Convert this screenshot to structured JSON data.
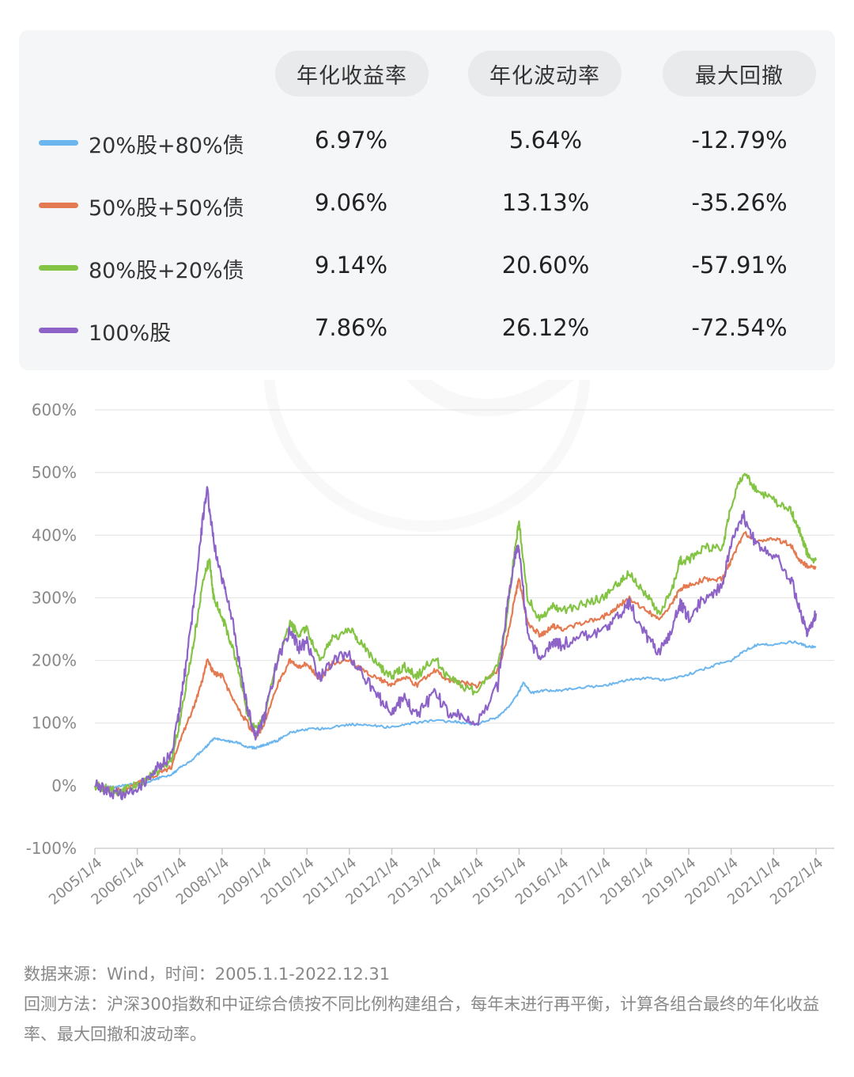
{
  "table": {
    "columns": [
      "年化收益率",
      "年化波动率",
      "最大回撤"
    ],
    "rows": [
      {
        "label": "20%股+80%债",
        "color": "#6bb6ee",
        "values": [
          "6.97%",
          "5.64%",
          "-12.79%"
        ]
      },
      {
        "label": "50%股+50%债",
        "color": "#e37a52",
        "values": [
          "9.06%",
          "13.13%",
          "-35.26%"
        ]
      },
      {
        "label": "80%股+20%债",
        "color": "#84c445",
        "values": [
          "9.14%",
          "20.60%",
          "-57.91%"
        ]
      },
      {
        "label": "100%股",
        "color": "#8e63c8",
        "values": [
          "7.86%",
          "26.12%",
          "-72.54%"
        ]
      }
    ]
  },
  "chart_data": {
    "type": "line",
    "ylim": [
      -100,
      600
    ],
    "y_ticks": [
      "600%",
      "500%",
      "400%",
      "300%",
      "200%",
      "100%",
      "0%",
      "-100%"
    ],
    "y_tick_values": [
      600,
      500,
      400,
      300,
      200,
      100,
      0,
      -100
    ],
    "x_ticks": [
      "2005/1/4",
      "2006/1/4",
      "2007/1/4",
      "2008/1/4",
      "2009/1/4",
      "2010/1/4",
      "2011/1/4",
      "2012/1/4",
      "2013/1/4",
      "2014/1/4",
      "2015/1/4",
      "2016/1/4",
      "2017/1/4",
      "2018/1/4",
      "2019/1/4",
      "2020/1/4",
      "2021/1/4",
      "2022/1/4"
    ],
    "x_range": [
      2005.0,
      2022.0
    ],
    "grid": true,
    "series": [
      {
        "name": "20%股+80%债",
        "color": "#6bb6ee",
        "points": [
          [
            2005.0,
            0
          ],
          [
            2005.4,
            -3
          ],
          [
            2005.8,
            2
          ],
          [
            2006.2,
            5
          ],
          [
            2006.5,
            12
          ],
          [
            2006.8,
            18
          ],
          [
            2007.0,
            28
          ],
          [
            2007.3,
            42
          ],
          [
            2007.6,
            60
          ],
          [
            2007.8,
            75
          ],
          [
            2008.0,
            72
          ],
          [
            2008.3,
            70
          ],
          [
            2008.6,
            62
          ],
          [
            2008.8,
            60
          ],
          [
            2009.0,
            65
          ],
          [
            2009.3,
            72
          ],
          [
            2009.6,
            85
          ],
          [
            2010.0,
            90
          ],
          [
            2010.5,
            92
          ],
          [
            2011.0,
            98
          ],
          [
            2011.5,
            96
          ],
          [
            2012.0,
            93
          ],
          [
            2012.5,
            100
          ],
          [
            2013.0,
            104
          ],
          [
            2013.5,
            102
          ],
          [
            2014.0,
            98
          ],
          [
            2014.5,
            110
          ],
          [
            2014.8,
            130
          ],
          [
            2015.0,
            150
          ],
          [
            2015.1,
            165
          ],
          [
            2015.3,
            148
          ],
          [
            2015.6,
            152
          ],
          [
            2016.0,
            152
          ],
          [
            2016.5,
            157
          ],
          [
            2017.0,
            160
          ],
          [
            2017.5,
            168
          ],
          [
            2018.0,
            172
          ],
          [
            2018.5,
            168
          ],
          [
            2019.0,
            178
          ],
          [
            2019.5,
            190
          ],
          [
            2020.0,
            200
          ],
          [
            2020.3,
            215
          ],
          [
            2020.6,
            225
          ],
          [
            2021.0,
            226
          ],
          [
            2021.5,
            230
          ],
          [
            2021.8,
            222
          ],
          [
            2022.0,
            222
          ]
        ]
      },
      {
        "name": "50%股+50%债",
        "color": "#e37a52",
        "points": [
          [
            2005.0,
            0
          ],
          [
            2005.3,
            -3
          ],
          [
            2005.6,
            -8
          ],
          [
            2005.9,
            0
          ],
          [
            2006.2,
            10
          ],
          [
            2006.5,
            20
          ],
          [
            2006.8,
            30
          ],
          [
            2007.0,
            70
          ],
          [
            2007.3,
            120
          ],
          [
            2007.5,
            160
          ],
          [
            2007.65,
            200
          ],
          [
            2007.8,
            180
          ],
          [
            2008.0,
            175
          ],
          [
            2008.3,
            130
          ],
          [
            2008.6,
            100
          ],
          [
            2008.8,
            75
          ],
          [
            2009.0,
            100
          ],
          [
            2009.3,
            160
          ],
          [
            2009.6,
            200
          ],
          [
            2009.8,
            190
          ],
          [
            2010.0,
            195
          ],
          [
            2010.3,
            170
          ],
          [
            2010.6,
            195
          ],
          [
            2011.0,
            200
          ],
          [
            2011.3,
            185
          ],
          [
            2011.7,
            170
          ],
          [
            2012.0,
            160
          ],
          [
            2012.3,
            175
          ],
          [
            2012.6,
            160
          ],
          [
            2013.0,
            185
          ],
          [
            2013.3,
            170
          ],
          [
            2013.6,
            165
          ],
          [
            2014.0,
            160
          ],
          [
            2014.5,
            185
          ],
          [
            2014.7,
            230
          ],
          [
            2014.9,
            300
          ],
          [
            2015.0,
            330
          ],
          [
            2015.2,
            260
          ],
          [
            2015.5,
            240
          ],
          [
            2015.8,
            255
          ],
          [
            2016.0,
            250
          ],
          [
            2016.5,
            260
          ],
          [
            2017.0,
            270
          ],
          [
            2017.3,
            285
          ],
          [
            2017.6,
            300
          ],
          [
            2018.0,
            280
          ],
          [
            2018.3,
            265
          ],
          [
            2018.6,
            290
          ],
          [
            2018.8,
            315
          ],
          [
            2019.0,
            320
          ],
          [
            2019.4,
            330
          ],
          [
            2019.8,
            330
          ],
          [
            2020.0,
            360
          ],
          [
            2020.3,
            405
          ],
          [
            2020.6,
            390
          ],
          [
            2021.0,
            395
          ],
          [
            2021.4,
            385
          ],
          [
            2021.6,
            360
          ],
          [
            2021.8,
            350
          ],
          [
            2022.0,
            350
          ]
        ]
      },
      {
        "name": "80%股+20%债",
        "color": "#84c445",
        "points": [
          [
            2005.0,
            0
          ],
          [
            2005.3,
            -5
          ],
          [
            2005.6,
            -10
          ],
          [
            2005.9,
            0
          ],
          [
            2006.2,
            10
          ],
          [
            2006.5,
            25
          ],
          [
            2006.8,
            40
          ],
          [
            2007.0,
            100
          ],
          [
            2007.2,
            180
          ],
          [
            2007.4,
            260
          ],
          [
            2007.55,
            330
          ],
          [
            2007.7,
            360
          ],
          [
            2007.8,
            300
          ],
          [
            2008.0,
            270
          ],
          [
            2008.2,
            230
          ],
          [
            2008.4,
            180
          ],
          [
            2008.6,
            110
          ],
          [
            2008.8,
            90
          ],
          [
            2009.0,
            110
          ],
          [
            2009.3,
            200
          ],
          [
            2009.6,
            260
          ],
          [
            2009.8,
            240
          ],
          [
            2010.0,
            250
          ],
          [
            2010.3,
            200
          ],
          [
            2010.6,
            235
          ],
          [
            2011.0,
            250
          ],
          [
            2011.3,
            225
          ],
          [
            2011.7,
            190
          ],
          [
            2012.0,
            175
          ],
          [
            2012.3,
            190
          ],
          [
            2012.6,
            175
          ],
          [
            2013.0,
            205
          ],
          [
            2013.3,
            175
          ],
          [
            2013.6,
            160
          ],
          [
            2014.0,
            150
          ],
          [
            2014.5,
            190
          ],
          [
            2014.7,
            260
          ],
          [
            2014.9,
            380
          ],
          [
            2015.0,
            420
          ],
          [
            2015.2,
            300
          ],
          [
            2015.5,
            265
          ],
          [
            2015.8,
            285
          ],
          [
            2016.0,
            280
          ],
          [
            2016.5,
            290
          ],
          [
            2017.0,
            300
          ],
          [
            2017.3,
            320
          ],
          [
            2017.6,
            340
          ],
          [
            2018.0,
            305
          ],
          [
            2018.3,
            275
          ],
          [
            2018.6,
            310
          ],
          [
            2018.8,
            360
          ],
          [
            2019.0,
            360
          ],
          [
            2019.4,
            380
          ],
          [
            2019.8,
            380
          ],
          [
            2020.0,
            450
          ],
          [
            2020.3,
            500
          ],
          [
            2020.6,
            470
          ],
          [
            2021.0,
            455
          ],
          [
            2021.4,
            440
          ],
          [
            2021.6,
            410
          ],
          [
            2021.8,
            370
          ],
          [
            2022.0,
            360
          ]
        ]
      },
      {
        "name": "100%股",
        "color": "#8e63c8",
        "points": [
          [
            2005.0,
            0
          ],
          [
            2005.3,
            -8
          ],
          [
            2005.6,
            -15
          ],
          [
            2005.9,
            -5
          ],
          [
            2006.2,
            5
          ],
          [
            2006.5,
            30
          ],
          [
            2006.8,
            50
          ],
          [
            2007.0,
            120
          ],
          [
            2007.2,
            220
          ],
          [
            2007.4,
            330
          ],
          [
            2007.55,
            430
          ],
          [
            2007.65,
            470
          ],
          [
            2007.8,
            390
          ],
          [
            2008.0,
            330
          ],
          [
            2008.2,
            280
          ],
          [
            2008.4,
            200
          ],
          [
            2008.6,
            120
          ],
          [
            2008.8,
            80
          ],
          [
            2009.0,
            110
          ],
          [
            2009.3,
            200
          ],
          [
            2009.6,
            250
          ],
          [
            2009.8,
            220
          ],
          [
            2010.0,
            230
          ],
          [
            2010.3,
            170
          ],
          [
            2010.6,
            200
          ],
          [
            2011.0,
            210
          ],
          [
            2011.3,
            180
          ],
          [
            2011.7,
            140
          ],
          [
            2012.0,
            120
          ],
          [
            2012.3,
            140
          ],
          [
            2012.6,
            110
          ],
          [
            2013.0,
            150
          ],
          [
            2013.3,
            120
          ],
          [
            2013.6,
            110
          ],
          [
            2014.0,
            100
          ],
          [
            2014.5,
            160
          ],
          [
            2014.7,
            280
          ],
          [
            2014.9,
            370
          ],
          [
            2015.0,
            380
          ],
          [
            2015.2,
            240
          ],
          [
            2015.5,
            200
          ],
          [
            2015.8,
            230
          ],
          [
            2016.0,
            225
          ],
          [
            2016.5,
            240
          ],
          [
            2017.0,
            250
          ],
          [
            2017.3,
            270
          ],
          [
            2017.6,
            290
          ],
          [
            2018.0,
            240
          ],
          [
            2018.3,
            210
          ],
          [
            2018.6,
            250
          ],
          [
            2018.8,
            290
          ],
          [
            2019.0,
            270
          ],
          [
            2019.4,
            300
          ],
          [
            2019.8,
            320
          ],
          [
            2020.0,
            390
          ],
          [
            2020.3,
            430
          ],
          [
            2020.6,
            380
          ],
          [
            2021.0,
            370
          ],
          [
            2021.4,
            330
          ],
          [
            2021.6,
            290
          ],
          [
            2021.8,
            240
          ],
          [
            2022.0,
            275
          ]
        ]
      }
    ]
  },
  "notes": {
    "source": "数据来源：Wind，时间：2005.1.1-2022.12.31",
    "method": "回测方法：沪深300指数和中证综合债按不同比例构建组合，每年末进行再平衡，计算各组合最终的年化收益率、最大回撤和波动率。"
  }
}
